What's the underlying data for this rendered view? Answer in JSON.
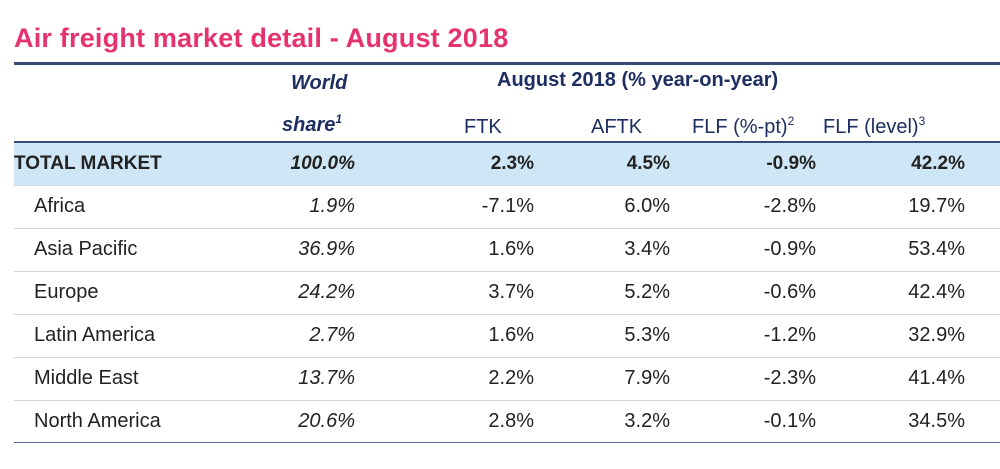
{
  "title": "Air freight market detail - August 2018",
  "header": {
    "world_share_line1": "World",
    "world_share_line2": "share",
    "world_share_sup": "1",
    "period_label": "August 2018 (% year-on-year)",
    "columns": {
      "ftk": "FTK",
      "aftk": "AFTK",
      "flf_pt": "FLF (%-pt)",
      "flf_pt_sup": "2",
      "flf_level": "FLF (level)",
      "flf_level_sup": "3"
    }
  },
  "total": {
    "label": "TOTAL MARKET",
    "share": "100.0%",
    "ftk": "2.3%",
    "aftk": "4.5%",
    "flf_pt": "-0.9%",
    "flf_level": "42.2%"
  },
  "regions": [
    {
      "label": "Africa",
      "share": "1.9%",
      "ftk": "-7.1%",
      "aftk": "6.0%",
      "flf_pt": "-2.8%",
      "flf_level": "19.7%"
    },
    {
      "label": "Asia Pacific",
      "share": "36.9%",
      "ftk": "1.6%",
      "aftk": "3.4%",
      "flf_pt": "-0.9%",
      "flf_level": "53.4%"
    },
    {
      "label": "Europe",
      "share": "24.2%",
      "ftk": "3.7%",
      "aftk": "5.2%",
      "flf_pt": "-0.6%",
      "flf_level": "42.4%"
    },
    {
      "label": "Latin America",
      "share": "2.7%",
      "ftk": "1.6%",
      "aftk": "5.3%",
      "flf_pt": "-1.2%",
      "flf_level": "32.9%"
    },
    {
      "label": "Middle East",
      "share": "13.7%",
      "ftk": "2.2%",
      "aftk": "7.9%",
      "flf_pt": "-2.3%",
      "flf_level": "41.4%"
    },
    {
      "label": "North America",
      "share": "20.6%",
      "ftk": "2.8%",
      "aftk": "3.2%",
      "flf_pt": "-0.1%",
      "flf_level": "34.5%"
    }
  ],
  "colors": {
    "title": "#e6336f",
    "header_text": "#1e2e60",
    "rule": "#3a4a78",
    "total_row_bg": "#cfe6f6"
  }
}
